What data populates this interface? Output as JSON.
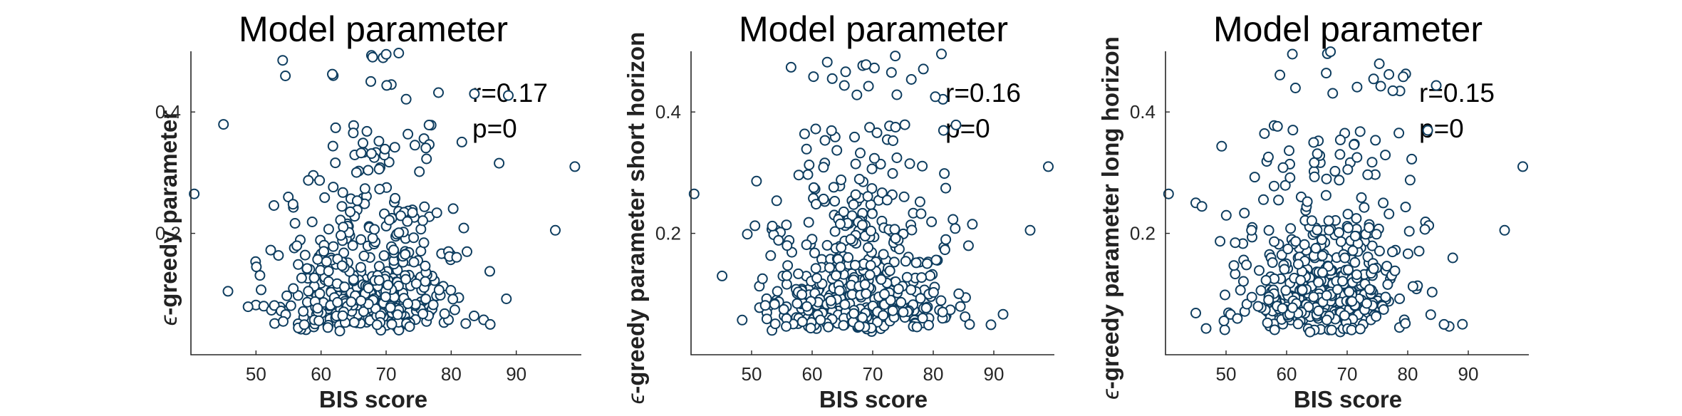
{
  "chart_data": [
    {
      "type": "scatter",
      "title": "Model parameter",
      "xlabel": "BIS score",
      "ylabel": "-greedy parameter",
      "ylabel_symbol": "ϵ",
      "xlim": [
        40,
        100
      ],
      "ylim": [
        0,
        0.5
      ],
      "xticks": [
        50,
        60,
        70,
        80,
        90
      ],
      "yticks": [
        0.2,
        0.4
      ],
      "annotations": [
        "r=0.17",
        "p=0"
      ],
      "marker_color": "#0e3d5f",
      "grid": false,
      "seed": 11
    },
    {
      "type": "scatter",
      "title": "Model parameter",
      "xlabel": "BIS score",
      "ylabel": "-greedy parameter short horizon",
      "ylabel_symbol": "ϵ",
      "xlim": [
        40,
        100
      ],
      "ylim": [
        0,
        0.5
      ],
      "xticks": [
        50,
        60,
        70,
        80,
        90
      ],
      "yticks": [
        0.2,
        0.4
      ],
      "annotations": [
        "r=0.16",
        "p=0"
      ],
      "marker_color": "#0e3d5f",
      "grid": false,
      "seed": 23
    },
    {
      "type": "scatter",
      "title": "Model parameter",
      "xlabel": "BIS score",
      "ylabel": "-greedy parameter long horizon",
      "ylabel_symbol": "ϵ",
      "xlim": [
        40,
        100
      ],
      "ylim": [
        0,
        0.5
      ],
      "xticks": [
        50,
        60,
        70,
        80,
        90
      ],
      "yticks": [
        0.2,
        0.4
      ],
      "annotations": [
        "r=0.15",
        "p=0"
      ],
      "marker_color": "#0e3d5f",
      "grid": false,
      "seed": 37
    }
  ]
}
